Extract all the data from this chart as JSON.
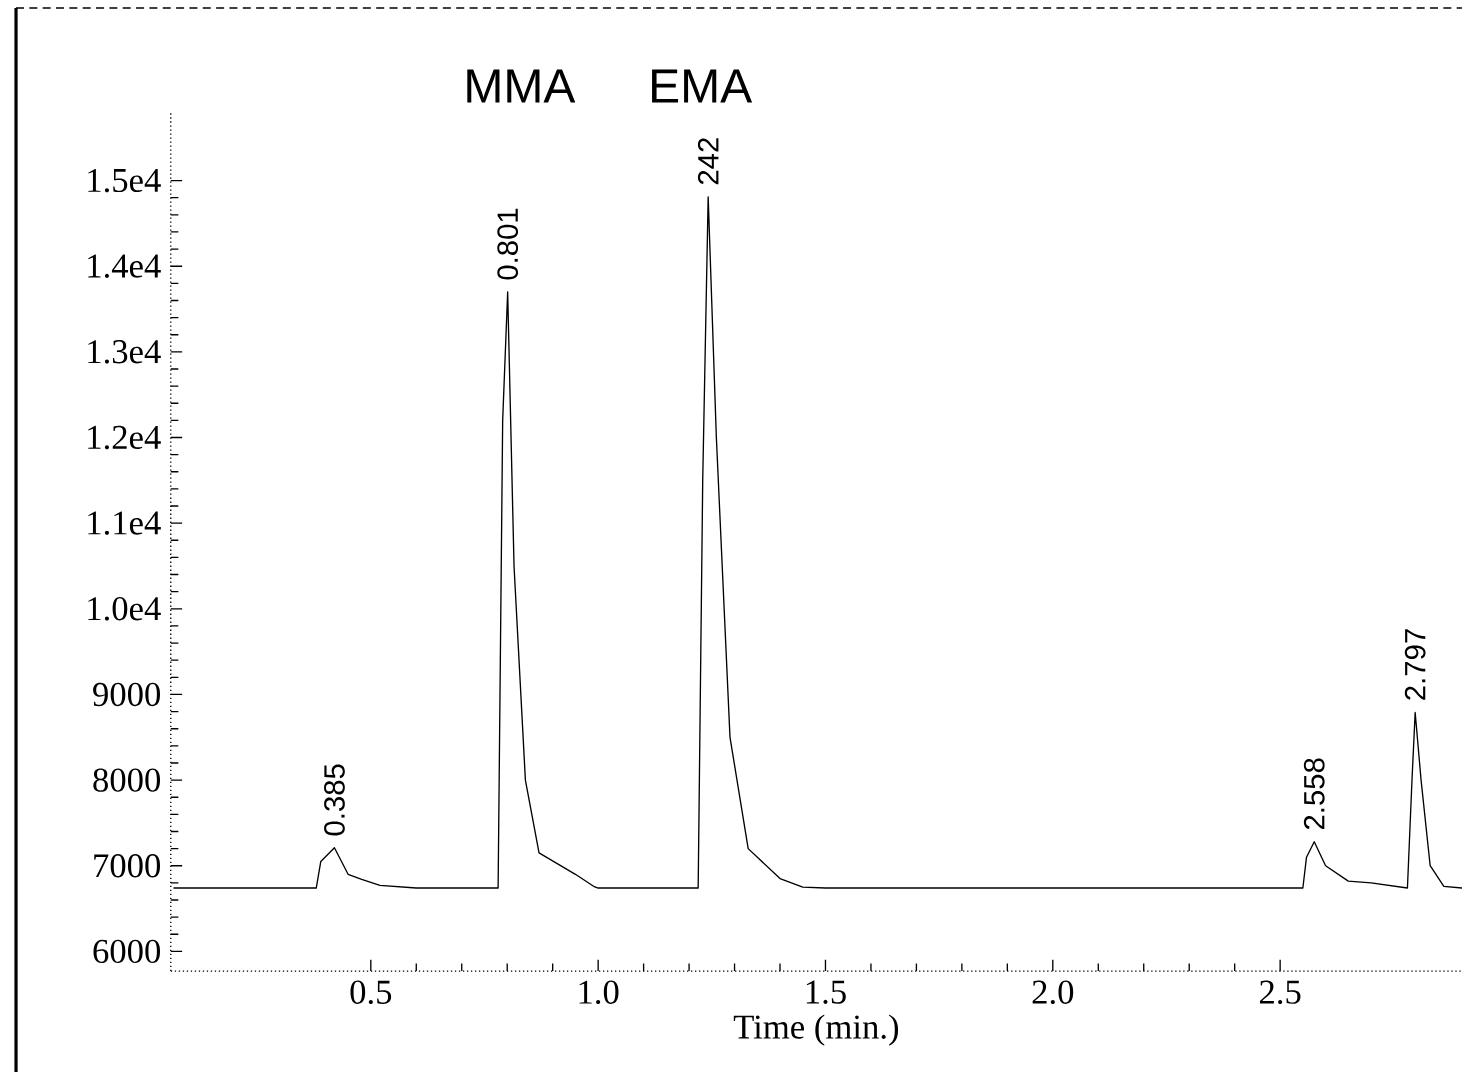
{
  "chart_data": {
    "type": "line",
    "xlabel": "Time (min.)",
    "x": [
      0.067,
      0.38,
      0.39,
      0.42,
      0.45,
      0.48,
      0.52,
      0.6,
      0.78,
      0.79,
      0.801,
      0.815,
      0.84,
      0.87,
      0.95,
      0.99,
      1.0,
      1.22,
      1.23,
      1.242,
      1.26,
      1.29,
      1.33,
      1.4,
      1.45,
      1.5,
      2.55,
      2.558,
      2.575,
      2.6,
      2.65,
      2.7,
      2.78,
      2.79,
      2.797,
      2.81,
      2.83,
      2.86,
      2.9
    ],
    "series": [
      {
        "color": "#000000",
        "values": [
          6740,
          6740,
          7050,
          7210,
          6900,
          6840,
          6770,
          6740,
          6740,
          12200,
          13700,
          10500,
          8000,
          7150,
          6900,
          6760,
          6740,
          6740,
          11500,
          14810,
          12000,
          8500,
          7200,
          6850,
          6750,
          6740,
          6740,
          7100,
          7280,
          7000,
          6820,
          6800,
          6740,
          8000,
          8790,
          8000,
          7000,
          6760,
          6740
        ]
      }
    ],
    "xlim": [
      0.06,
      2.9
    ],
    "ylim": [
      5770,
      15800
    ],
    "xticks": [
      {
        "value": 0.5,
        "label": "0.5"
      },
      {
        "value": 1.0,
        "label": "1.0"
      },
      {
        "value": 1.5,
        "label": "1.5"
      },
      {
        "value": 2.0,
        "label": "2.0"
      },
      {
        "value": 2.5,
        "label": "2.5"
      }
    ],
    "yticks": [
      6000,
      7000,
      8000,
      9000,
      {
        "value": 10000,
        "label": "1.0e4"
      },
      {
        "value": 11000,
        "label": "1.1e4"
      },
      {
        "value": 12000,
        "label": "1.2e4"
      },
      {
        "value": 13000,
        "label": "1.3e4"
      },
      {
        "value": 14000,
        "label": "1.4e4"
      },
      {
        "value": 15000,
        "label": "1.5e4"
      }
    ],
    "grid": false,
    "marker": "none",
    "line_style": "solid",
    "annotations": [
      "MMA",
      "EMA",
      {
        "text": "0.385",
        "x": 0.42,
        "y": 7210
      },
      {
        "text": "0.801",
        "x": 0.801,
        "y": 13700
      },
      {
        "text": "242",
        "x": 1.242,
        "y": 14810
      },
      {
        "text": "2.558",
        "x": 2.575,
        "y": 7280
      },
      {
        "text": "2.797",
        "x": 2.797,
        "y": 8790
      }
    ]
  }
}
